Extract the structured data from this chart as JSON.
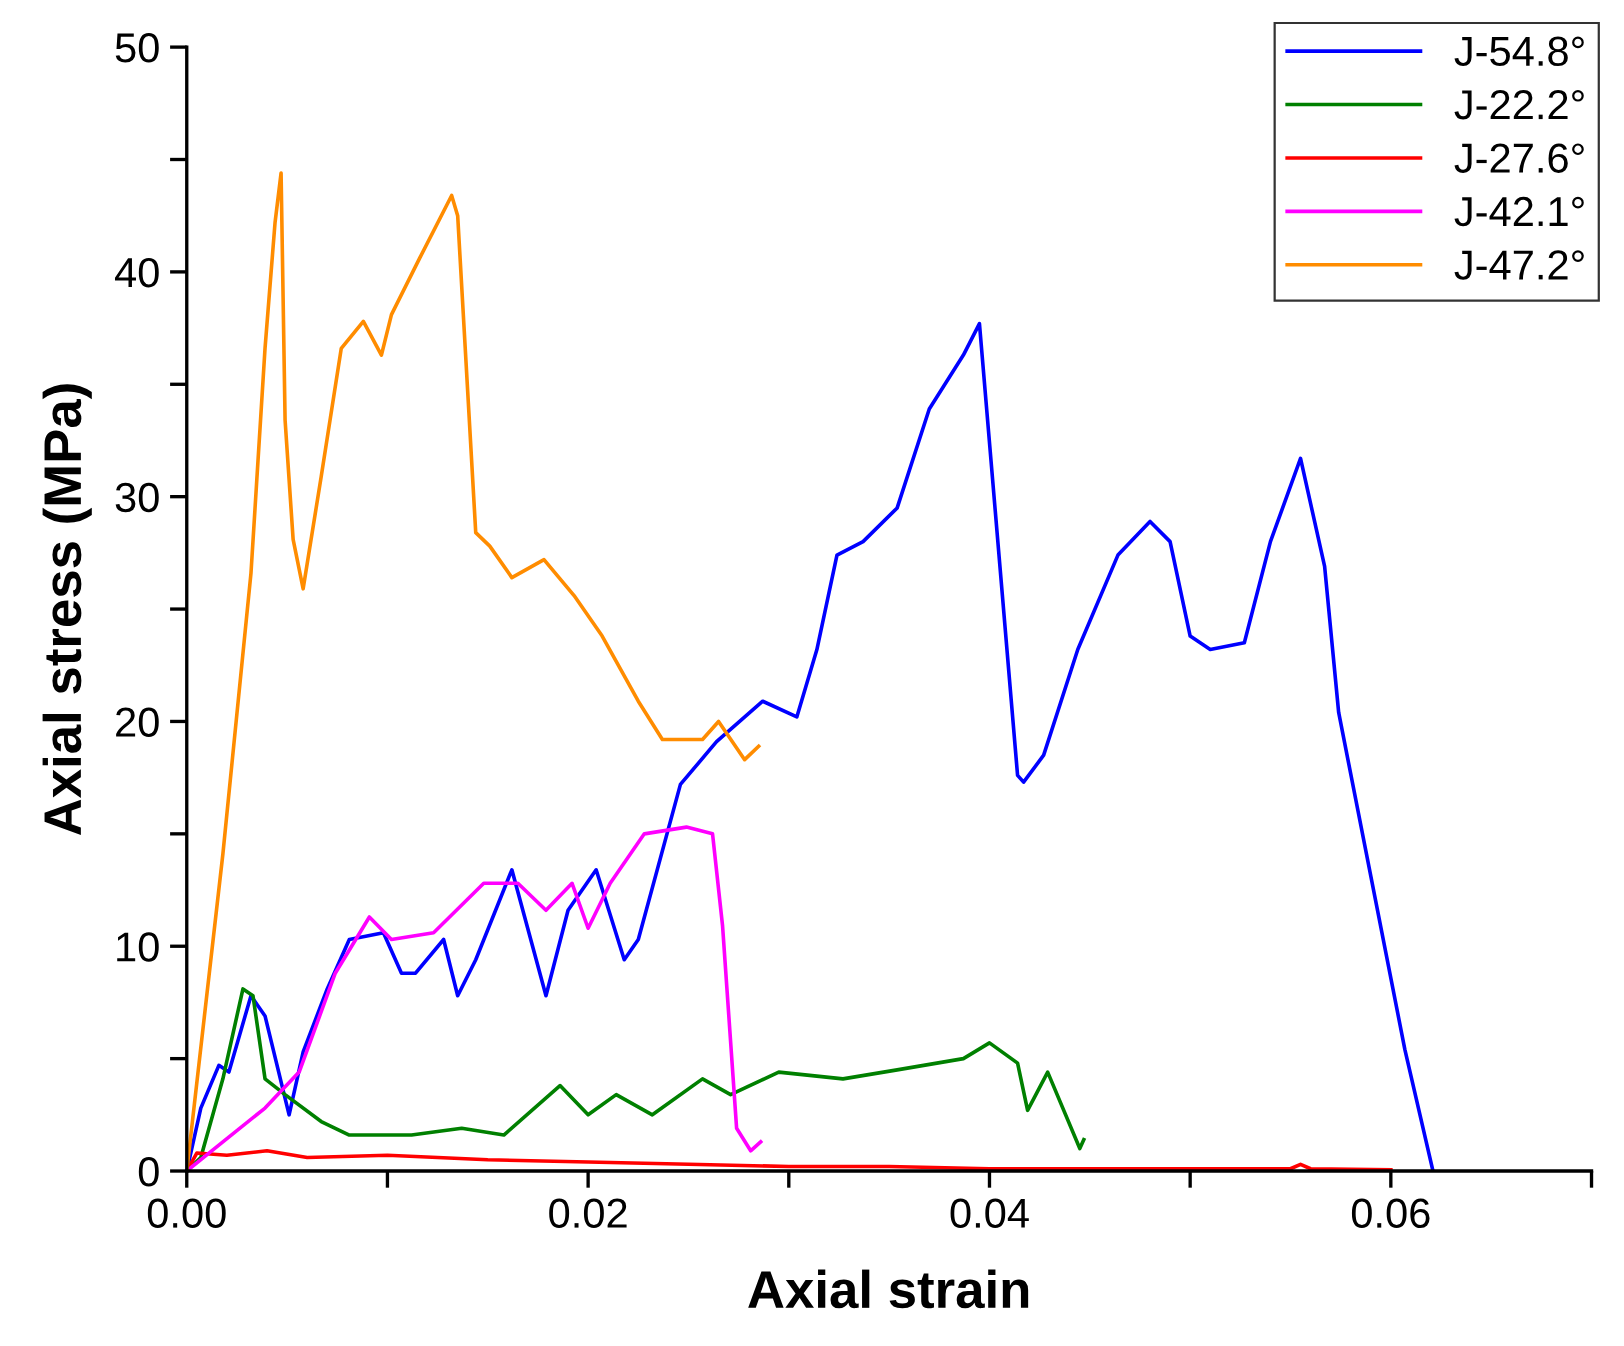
{
  "chart_data": {
    "type": "line",
    "xlabel": "Axial strain",
    "ylabel": "Axial stress (MPa)",
    "xlim": [
      0,
      0.07
    ],
    "ylim": [
      0,
      50
    ],
    "xticks": [
      {
        "value": 0,
        "label": "0.00"
      },
      {
        "value": 0.01,
        "label": null
      },
      {
        "value": 0.02,
        "label": "0.02"
      },
      {
        "value": 0.03,
        "label": null
      },
      {
        "value": 0.04,
        "label": "0.04"
      },
      {
        "value": 0.05,
        "label": null
      },
      {
        "value": 0.06,
        "label": "0.06"
      },
      {
        "value": 0.07,
        "label": null
      }
    ],
    "yticks": [
      0,
      {
        "value": 5,
        "label": null
      },
      10,
      {
        "value": 15,
        "label": null
      },
      20,
      {
        "value": 25,
        "label": null
      },
      30,
      {
        "value": 35,
        "label": null
      },
      40,
      {
        "value": 45,
        "label": null
      },
      50
    ],
    "grid": false,
    "legend": "top right",
    "marker": "none",
    "line_style": "solid",
    "series": [
      {
        "name": "J-54.8°",
        "color": "#0000ff",
        "x": [
          0,
          0.0007,
          0.0016,
          0.0021,
          0.0032,
          0.0039,
          0.0051,
          0.0058,
          0.007,
          0.0081,
          0.0098,
          0.0107,
          0.0114,
          0.0128,
          0.0135,
          0.0144,
          0.0162,
          0.0179,
          0.019,
          0.0204,
          0.0218,
          0.0225,
          0.0246,
          0.0264,
          0.0287,
          0.0304,
          0.0314,
          0.0324,
          0.0337,
          0.0354,
          0.037,
          0.0387,
          0.0395,
          0.0414,
          0.0417,
          0.0427,
          0.0444,
          0.0464,
          0.048,
          0.049,
          0.05,
          0.051,
          0.0527,
          0.054,
          0.0555,
          0.0567,
          0.0574,
          0.0607,
          0.0621
        ],
        "values": [
          0,
          2.8,
          4.7,
          4.4,
          7.8,
          6.9,
          2.5,
          5.3,
          8.1,
          10.3,
          10.6,
          8.8,
          8.8,
          10.3,
          7.8,
          9.4,
          13.4,
          7.8,
          11.6,
          13.4,
          9.4,
          10.3,
          17.2,
          19.1,
          20.9,
          20.2,
          23.2,
          27.4,
          28.0,
          29.5,
          33.9,
          36.3,
          37.7,
          17.6,
          17.3,
          18.5,
          23.2,
          27.4,
          28.9,
          28.0,
          23.8,
          23.2,
          23.5,
          28.0,
          31.7,
          26.9,
          20.4,
          5.4,
          0
        ]
      },
      {
        "name": "J-22.2°",
        "color": "#008000",
        "x": [
          0,
          0.0007,
          0.0018,
          0.0028,
          0.0033,
          0.0039,
          0.0049,
          0.0067,
          0.0081,
          0.0112,
          0.0137,
          0.0158,
          0.0186,
          0.02,
          0.0214,
          0.0232,
          0.0257,
          0.0271,
          0.0295,
          0.0327,
          0.0354,
          0.0387,
          0.04,
          0.0414,
          0.0419,
          0.0429,
          0.0445,
          0.0447
        ],
        "values": [
          0,
          0.6,
          4.1,
          8.1,
          7.8,
          4.1,
          3.4,
          2.2,
          1.6,
          1.6,
          1.9,
          1.6,
          3.8,
          2.5,
          3.4,
          2.5,
          4.1,
          3.4,
          4.4,
          4.1,
          4.5,
          5.0,
          5.7,
          4.8,
          2.7,
          4.4,
          1.0,
          1.4
        ]
      },
      {
        "name": "J-27.6°",
        "color": "#ff0000",
        "x": [
          0,
          0.0005,
          0.002,
          0.004,
          0.006,
          0.01,
          0.015,
          0.02,
          0.025,
          0.03,
          0.035,
          0.04,
          0.045,
          0.05,
          0.055,
          0.0555,
          0.056,
          0.06
        ],
        "values": [
          0,
          0.8,
          0.7,
          0.9,
          0.6,
          0.7,
          0.5,
          0.4,
          0.3,
          0.2,
          0.2,
          0.1,
          0.1,
          0.1,
          0.1,
          0.3,
          0.1,
          0.05
        ]
      },
      {
        "name": "J-42.1°",
        "color": "#ff00ff",
        "x": [
          0,
          0.0018,
          0.0039,
          0.0056,
          0.0074,
          0.0091,
          0.0102,
          0.0123,
          0.0148,
          0.0165,
          0.0179,
          0.0192,
          0.02,
          0.0211,
          0.0228,
          0.0249,
          0.0262,
          0.0267,
          0.0274,
          0.0281,
          0.0286
        ],
        "values": [
          0,
          1.3,
          2.8,
          4.4,
          8.8,
          11.3,
          10.3,
          10.6,
          12.8,
          12.8,
          11.6,
          12.8,
          10.8,
          12.8,
          15.0,
          15.3,
          15.0,
          10.9,
          1.9,
          0.9,
          1.3
        ]
      },
      {
        "name": "J-47.2°",
        "color": "#ff8c00",
        "x": [
          0,
          0.0018,
          0.0032,
          0.0039,
          0.0044,
          0.0047,
          0.0049,
          0.0053,
          0.0058,
          0.0067,
          0.0077,
          0.0088,
          0.0097,
          0.0102,
          0.0116,
          0.0132,
          0.0135,
          0.0144,
          0.0151,
          0.0162,
          0.0178,
          0.0193,
          0.0207,
          0.0225,
          0.0237,
          0.0257,
          0.0265,
          0.0278,
          0.0285
        ],
        "values": [
          0,
          14.1,
          26.6,
          36.6,
          42.2,
          44.4,
          33.4,
          28.1,
          25.9,
          30.9,
          36.6,
          37.8,
          36.3,
          38.1,
          40.6,
          43.4,
          42.5,
          28.4,
          27.8,
          26.4,
          27.2,
          25.6,
          23.8,
          20.9,
          19.2,
          19.2,
          20.0,
          18.3,
          18.9
        ]
      }
    ]
  }
}
